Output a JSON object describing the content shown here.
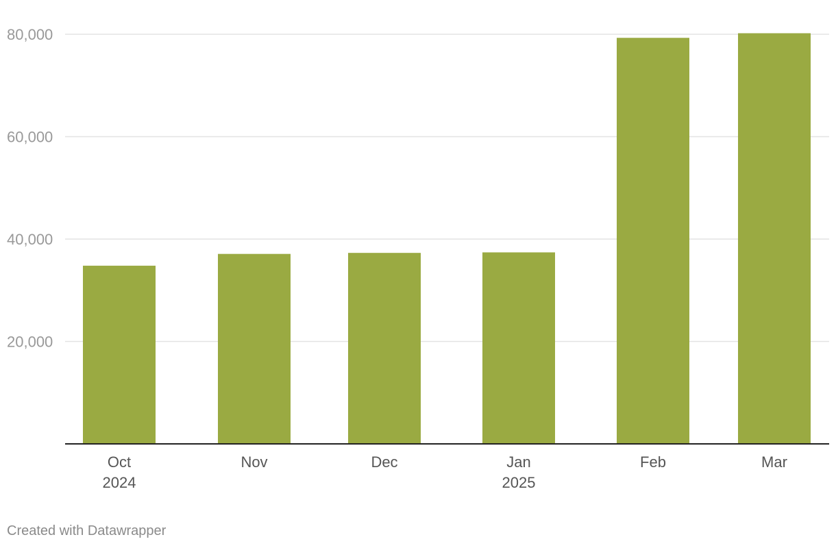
{
  "chart_data": {
    "type": "bar",
    "categories": [
      "Oct",
      "Nov",
      "Dec",
      "Jan",
      "Feb",
      "Mar"
    ],
    "category_sublabels": [
      "2024",
      "",
      "",
      "2025",
      "",
      ""
    ],
    "values": [
      34800,
      37100,
      37300,
      37400,
      79300,
      80200
    ],
    "ylim": [
      0,
      80000
    ],
    "yticks": [
      20000,
      40000,
      60000,
      80000
    ],
    "ytick_labels": [
      "20,000",
      "40,000",
      "60,000",
      "80,000"
    ],
    "grid": true,
    "bar_color": "#9aaa42",
    "title": "",
    "xlabel": "",
    "ylabel": ""
  },
  "footer": {
    "credit": "Created with Datawrapper"
  }
}
